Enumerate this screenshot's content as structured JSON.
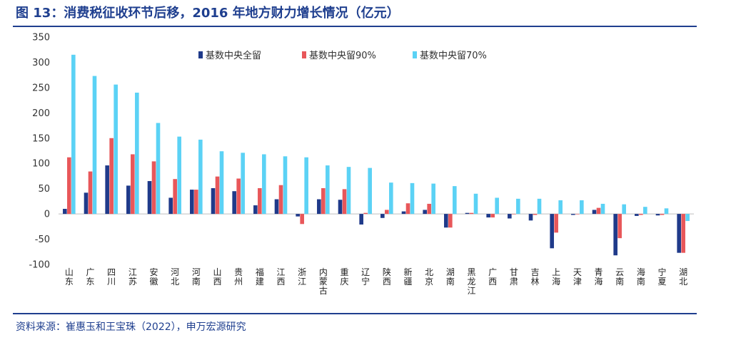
{
  "header": {
    "title": "图 13：消费税征收环节后移，2016 年地方财力增长情况（亿元）"
  },
  "footer": {
    "source": "资料来源：崔惠玉和王宝珠（2022），申万宏源研究"
  },
  "chart_data": {
    "type": "bar",
    "title": "消费税征收环节后移，2016 年地方财力增长情况（亿元）",
    "xlabel": "",
    "ylabel": "",
    "ylim": [
      -100,
      350
    ],
    "yticks": [
      -100,
      -50,
      0,
      50,
      100,
      150,
      200,
      250,
      300,
      350
    ],
    "legend_position": "top",
    "categories": [
      "山东",
      "广东",
      "四川",
      "江苏",
      "安徽",
      "河北",
      "河南",
      "山西",
      "贵州",
      "福建",
      "江西",
      "浙江",
      "内蒙古",
      "重庆",
      "辽宁",
      "陕西",
      "新疆",
      "北京",
      "湖南",
      "黑龙江",
      "广西",
      "甘肃",
      "吉林",
      "上海",
      "天津",
      "青海",
      "云南",
      "海南",
      "宁夏",
      "湖北"
    ],
    "series": [
      {
        "name": "基数中央全留",
        "color": "#1f3a8a",
        "values": [
          10,
          42,
          96,
          56,
          65,
          32,
          48,
          51,
          45,
          17,
          29,
          -5,
          29,
          28,
          -21,
          -8,
          5,
          8,
          -27,
          2,
          -7,
          -9,
          -13,
          -68,
          -2,
          8,
          -82,
          -4,
          -3,
          -77
        ]
      },
      {
        "name": "基数中央留90%",
        "color": "#e8575a",
        "values": [
          112,
          84,
          150,
          118,
          104,
          69,
          48,
          74,
          70,
          51,
          57,
          -20,
          51,
          49,
          2,
          8,
          21,
          20,
          -27,
          2,
          -7,
          0,
          -2,
          -37,
          0,
          12,
          -48,
          -2,
          -2,
          -77
        ]
      },
      {
        "name": "基数中央留70%",
        "color": "#5bd2f5",
        "values": [
          315,
          273,
          256,
          240,
          180,
          153,
          147,
          124,
          121,
          118,
          114,
          112,
          96,
          93,
          91,
          62,
          61,
          60,
          55,
          40,
          32,
          30,
          30,
          27,
          27,
          20,
          19,
          14,
          11,
          -14
        ]
      }
    ]
  }
}
